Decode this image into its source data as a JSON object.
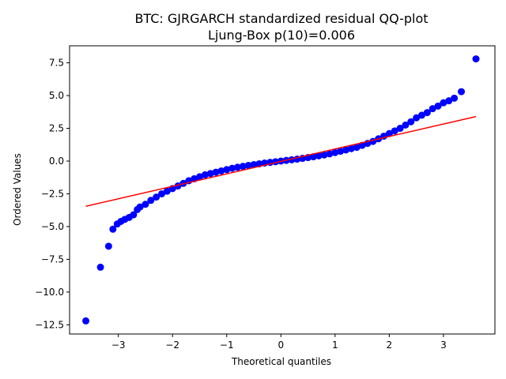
{
  "chart_data": {
    "type": "scatter",
    "title": "BTC: GJRGARCH standardized residual QQ-plot",
    "subtitle": "Ljung-Box p(10)=0.006",
    "xlabel": "Theoretical quantiles",
    "ylabel": "Ordered Values",
    "xlim": [
      -3.9,
      3.95
    ],
    "ylim": [
      -13.2,
      8.8
    ],
    "xticks": [
      -3,
      -2,
      -1,
      0,
      1,
      2,
      3
    ],
    "xtick_labels": [
      "−3",
      "−2",
      "−1",
      "0",
      "1",
      "2",
      "3"
    ],
    "yticks": [
      -12.5,
      -10.0,
      -7.5,
      -5.0,
      -2.5,
      0.0,
      2.5,
      5.0,
      7.5
    ],
    "ytick_labels": [
      "−12.5",
      "−10.0",
      "−7.5",
      "−5.0",
      "−2.5",
      "0.0",
      "2.5",
      "5.0",
      "7.5"
    ],
    "grid": false,
    "series": [
      {
        "marker": "circle",
        "color": "#0000ff",
        "x": [
          -3.6,
          -3.33,
          -3.18,
          -3.1,
          -3.02,
          -2.95,
          -2.88,
          -2.8,
          -2.72,
          -2.65,
          -2.6,
          -2.5,
          -2.4,
          -2.3,
          -2.2,
          -2.1,
          -2.0,
          -1.9,
          -1.8,
          -1.7,
          -1.6,
          -1.5,
          -1.4,
          -1.3,
          -1.2,
          -1.1,
          -1.0,
          -0.9,
          -0.8,
          -0.7,
          -0.6,
          -0.5,
          -0.4,
          -0.3,
          -0.2,
          -0.1,
          0.0,
          0.1,
          0.2,
          0.3,
          0.4,
          0.5,
          0.6,
          0.7,
          0.8,
          0.9,
          1.0,
          1.1,
          1.2,
          1.3,
          1.4,
          1.5,
          1.6,
          1.7,
          1.8,
          1.9,
          2.0,
          2.1,
          2.2,
          2.3,
          2.4,
          2.5,
          2.6,
          2.7,
          2.8,
          2.9,
          3.0,
          3.1,
          3.2,
          3.33,
          3.6
        ],
        "y": [
          -12.2,
          -8.1,
          -6.5,
          -5.2,
          -4.8,
          -4.6,
          -4.45,
          -4.3,
          -4.1,
          -3.7,
          -3.5,
          -3.3,
          -3.0,
          -2.75,
          -2.5,
          -2.3,
          -2.1,
          -1.9,
          -1.7,
          -1.5,
          -1.35,
          -1.2,
          -1.05,
          -0.95,
          -0.85,
          -0.75,
          -0.65,
          -0.55,
          -0.47,
          -0.4,
          -0.33,
          -0.27,
          -0.21,
          -0.15,
          -0.1,
          -0.05,
          0.0,
          0.05,
          0.1,
          0.15,
          0.21,
          0.27,
          0.33,
          0.4,
          0.47,
          0.55,
          0.65,
          0.75,
          0.85,
          0.95,
          1.05,
          1.2,
          1.35,
          1.5,
          1.7,
          1.9,
          2.1,
          2.3,
          2.5,
          2.75,
          3.0,
          3.3,
          3.5,
          3.7,
          4.0,
          4.2,
          4.45,
          4.6,
          4.8,
          5.3,
          7.8
        ]
      },
      {
        "marker": "line",
        "color": "#ff0000",
        "x": [
          -3.6,
          3.6
        ],
        "y": [
          -3.45,
          3.4
        ]
      }
    ]
  }
}
